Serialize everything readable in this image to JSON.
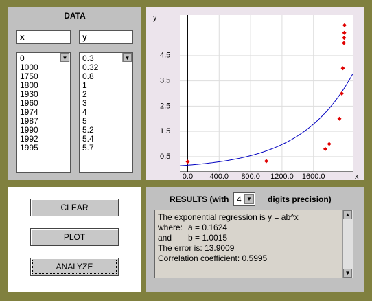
{
  "data_panel": {
    "title": "DATA",
    "x_header": "x",
    "y_header": "y",
    "x_list": [
      0,
      1000,
      1750,
      1800,
      1930,
      1960,
      1974,
      1987,
      1990,
      1992,
      1995
    ],
    "y_list": [
      0.3,
      0.32,
      0.8,
      1,
      2,
      3,
      4,
      5,
      5.2,
      5.4,
      5.7
    ]
  },
  "chart": {
    "type": "scatter",
    "x_label": "x",
    "y_label": "y",
    "point_color": "#e00000",
    "curve_color": "#0000c0",
    "grid": true,
    "xlim": [
      -100,
      2100
    ],
    "ylim": [
      -0.1,
      6.1
    ],
    "xticks": [
      {
        "value": 0,
        "label": "0.0"
      },
      {
        "value": 400,
        "label": "400.0"
      },
      {
        "value": 800,
        "label": "800.0"
      },
      {
        "value": 1200,
        "label": "1200.0"
      },
      {
        "value": 1600,
        "label": "1600.0"
      }
    ],
    "yticks": [
      0.5,
      1.5,
      2.5,
      3.5,
      4.5
    ]
  },
  "buttons": [
    "CLEAR",
    "PLOT",
    "ANALYZE"
  ],
  "results": {
    "heading_start": "RESULTS (with",
    "precision": 4,
    "heading_end": "digits precision)",
    "equation": "The exponential regression is y = ab^x",
    "where": "where:",
    "a_label": "a =",
    "a": 0.1624,
    "and": "and",
    "b_label": "b =",
    "b": 1.0015,
    "error_label": "The error is:",
    "error": 13.9009,
    "correlation_label": "Correlation coefficient:",
    "correlation": 0.5995
  }
}
